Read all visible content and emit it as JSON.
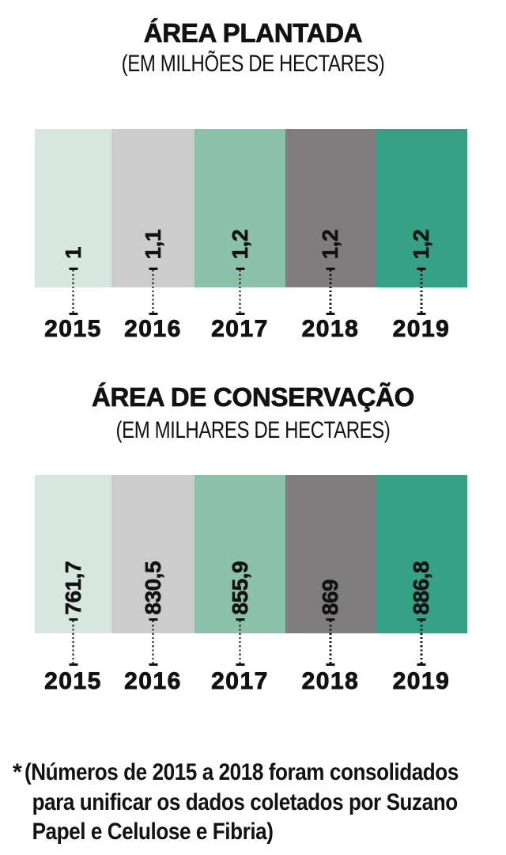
{
  "page": {
    "background": "#ffffff",
    "text_color": "#121212"
  },
  "charts": [
    {
      "id": "planted-area",
      "title": "ÁREA PLANTADA",
      "subtitle": "(EM MILHÕES DE HECTARES)",
      "years": [
        "2015",
        "2016",
        "2017",
        "2018",
        "2019"
      ],
      "value_labels": [
        "1",
        "1,1",
        "1,2",
        "1,2",
        "1,2"
      ]
    },
    {
      "id": "conservation-area",
      "title": "ÁREA DE CONSERVAÇÃO",
      "subtitle": "(EM MILHARES DE HECTARES)",
      "years": [
        "2015",
        "2016",
        "2017",
        "2018",
        "2019"
      ],
      "value_labels": [
        "761,7",
        "830,5",
        "855,9",
        "869",
        "886,8"
      ]
    }
  ],
  "chart_data": [
    {
      "type": "bar",
      "title": "ÁREA PLANTADA",
      "subtitle": "(EM MILHÕES DE HECTARES)",
      "unit": "milhões de hectares",
      "categories": [
        "2015",
        "2016",
        "2017",
        "2018",
        "2019"
      ],
      "values": [
        1,
        1.1,
        1.2,
        1.2,
        1.2
      ],
      "value_labels": [
        "1",
        "1,1",
        "1,2",
        "1,2",
        "1,2"
      ],
      "bar_colors": [
        "#d8e6e0",
        "#cccccc",
        "#8bc0aa",
        "#807d7e",
        "#37a188"
      ],
      "legend": false,
      "grid": false,
      "axes_visible": false,
      "note": "full-height color bands with rotated value labels"
    },
    {
      "type": "bar",
      "title": "ÁREA DE CONSERVAÇÃO",
      "subtitle": "(EM MILHARES DE HECTARES)",
      "unit": "milhares de hectares",
      "categories": [
        "2015",
        "2016",
        "2017",
        "2018",
        "2019"
      ],
      "values": [
        761.7,
        830.5,
        855.9,
        869,
        886.8
      ],
      "value_labels": [
        "761,7",
        "830,5",
        "855,9",
        "869",
        "886,8"
      ],
      "bar_colors": [
        "#d8e6e0",
        "#cccccc",
        "#8bc0aa",
        "#807d7e",
        "#37a188"
      ],
      "legend": false,
      "grid": false,
      "axes_visible": false,
      "note": "full-height color bands with rotated value labels"
    }
  ],
  "footnote": {
    "marker": "*",
    "lines": [
      "(Números de 2015 a 2018 foram consolidados",
      "para unificar os dados coletados por Suzano",
      "Papel e Celulose e Fibria)"
    ]
  },
  "colors": {
    "band_2015": "#d8e6e0",
    "band_2016": "#cccccc",
    "band_2017": "#8bc0aa",
    "band_2018": "#807d7e",
    "band_2019": "#37a188",
    "text": "#121212"
  }
}
